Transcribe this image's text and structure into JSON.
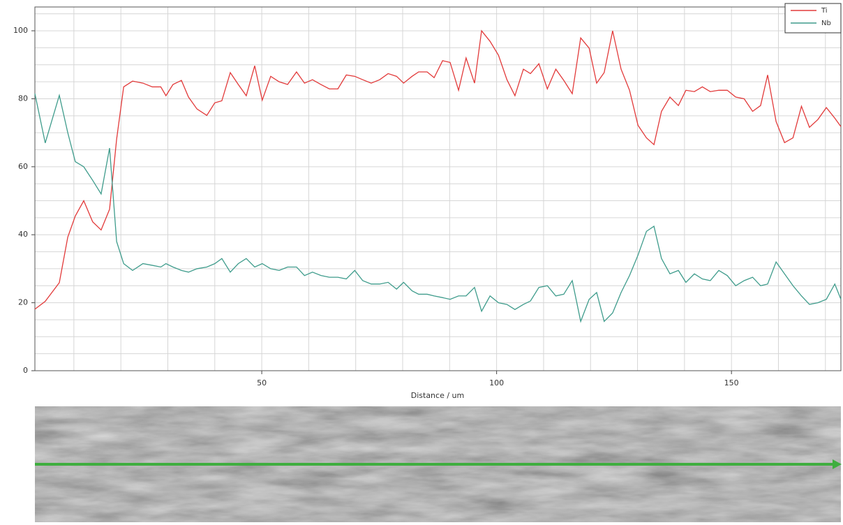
{
  "chart_data": {
    "type": "line",
    "x_label": "Distance / um",
    "x": [
      1.7,
      3.9,
      6.9,
      8.7,
      10.3,
      12.1,
      14.0,
      15.8,
      17.6,
      19.1,
      20.6,
      22.5,
      24.7,
      26.7,
      28.5,
      29.6,
      31.1,
      32.9,
      34.4,
      36.2,
      38.3,
      40.0,
      41.5,
      43.3,
      45.0,
      46.7,
      48.5,
      50.1,
      51.9,
      53.7,
      55.5,
      57.4,
      59.1,
      60.8,
      62.6,
      64.4,
      66.2,
      68.0,
      69.8,
      71.5,
      73.3,
      75.1,
      76.9,
      78.7,
      80.2,
      82.0,
      83.4,
      85.2,
      86.7,
      88.5,
      90.1,
      91.9,
      93.5,
      95.3,
      96.8,
      98.6,
      100.4,
      102.2,
      103.9,
      105.7,
      107.2,
      109.0,
      110.8,
      112.6,
      114.3,
      116.1,
      117.9,
      119.7,
      121.3,
      122.9,
      124.7,
      126.5,
      128.3,
      130.1,
      131.9,
      133.5,
      135.1,
      136.9,
      138.7,
      140.3,
      142.1,
      143.8,
      145.5,
      147.3,
      149.1,
      150.9,
      152.7,
      154.5,
      156.2,
      157.7,
      159.5,
      161.3,
      163.1,
      164.9,
      166.6,
      168.4,
      170.2,
      172.0,
      173.3
    ],
    "series": [
      {
        "name": "Ti",
        "color": "#e23a3a",
        "values": [
          18.1,
          20.4,
          25.9,
          39.3,
          45.5,
          50,
          43.8,
          41.4,
          47.5,
          68.1,
          83.5,
          85.2,
          84.6,
          83.5,
          83.5,
          80.9,
          84.2,
          85.4,
          80.5,
          77,
          75.1,
          78.8,
          79.4,
          87.7,
          84.2,
          80.9,
          89.7,
          79.6,
          86.6,
          85,
          84.2,
          87.9,
          84.6,
          85.6,
          84.2,
          82.9,
          82.9,
          87,
          86.6,
          85.6,
          84.6,
          85.6,
          87.4,
          86.6,
          84.6,
          86.6,
          87.9,
          87.9,
          86.2,
          91.2,
          90.7,
          82.5,
          92,
          84.6,
          100,
          96.9,
          92.8,
          85.6,
          80.9,
          88.7,
          87.4,
          90.3,
          82.9,
          88.7,
          85.4,
          81.5,
          97.9,
          94.9,
          84.6,
          87.7,
          100,
          88.7,
          82.5,
          72.2,
          68.5,
          66.5,
          76.3,
          80.5,
          78,
          82.5,
          82.1,
          83.5,
          82.1,
          82.5,
          82.5,
          80.5,
          80,
          76.3,
          78,
          87,
          73.3,
          67.1,
          68.5,
          77.8,
          71.6,
          73.9,
          77.4,
          74.3,
          71.8
        ]
      },
      {
        "name": "Nb",
        "color": "#3f9c8c",
        "values": [
          81.5,
          67,
          81,
          70,
          61.5,
          60,
          56,
          52,
          65.5,
          38,
          31.5,
          29.5,
          31.5,
          31,
          30.5,
          31.5,
          30.5,
          29.5,
          29,
          30,
          30.5,
          31.5,
          33,
          29,
          31.5,
          33,
          30.5,
          31.5,
          30,
          29.5,
          30.5,
          30.5,
          28,
          29,
          28,
          27.5,
          27.5,
          27,
          29.5,
          26.5,
          25.5,
          25.5,
          26,
          24,
          26,
          23.5,
          22.5,
          22.5,
          22,
          21.5,
          21,
          22,
          22,
          24.5,
          17.5,
          22,
          20,
          19.5,
          18,
          19.5,
          20.5,
          24.5,
          25,
          22,
          22.5,
          26.5,
          14.5,
          21,
          23,
          14.5,
          17,
          23,
          28,
          34,
          41,
          42.5,
          33,
          28.5,
          29.5,
          26,
          28.5,
          27,
          26.5,
          29.5,
          28,
          25,
          26.5,
          27.5,
          25,
          25.5,
          32,
          28.5,
          25,
          22,
          19.5,
          20,
          21,
          25.5,
          21
        ]
      }
    ],
    "xlim": [
      1.7,
      173.3
    ],
    "ylim": [
      0,
      107
    ],
    "xticks": [
      50,
      100,
      150
    ],
    "yticks": [
      0,
      20,
      40,
      60,
      80,
      100
    ],
    "xgrid": [
      10,
      20,
      30,
      40,
      50,
      60,
      70,
      80,
      90,
      100,
      110,
      120,
      130,
      140,
      150,
      160,
      170
    ],
    "ygrid": [
      5,
      10,
      15,
      20,
      25,
      30,
      35,
      40,
      45,
      50,
      55,
      60,
      65,
      70,
      75,
      80,
      85,
      90,
      95,
      100,
      105
    ],
    "grid": true,
    "legend": "upper right"
  }
}
